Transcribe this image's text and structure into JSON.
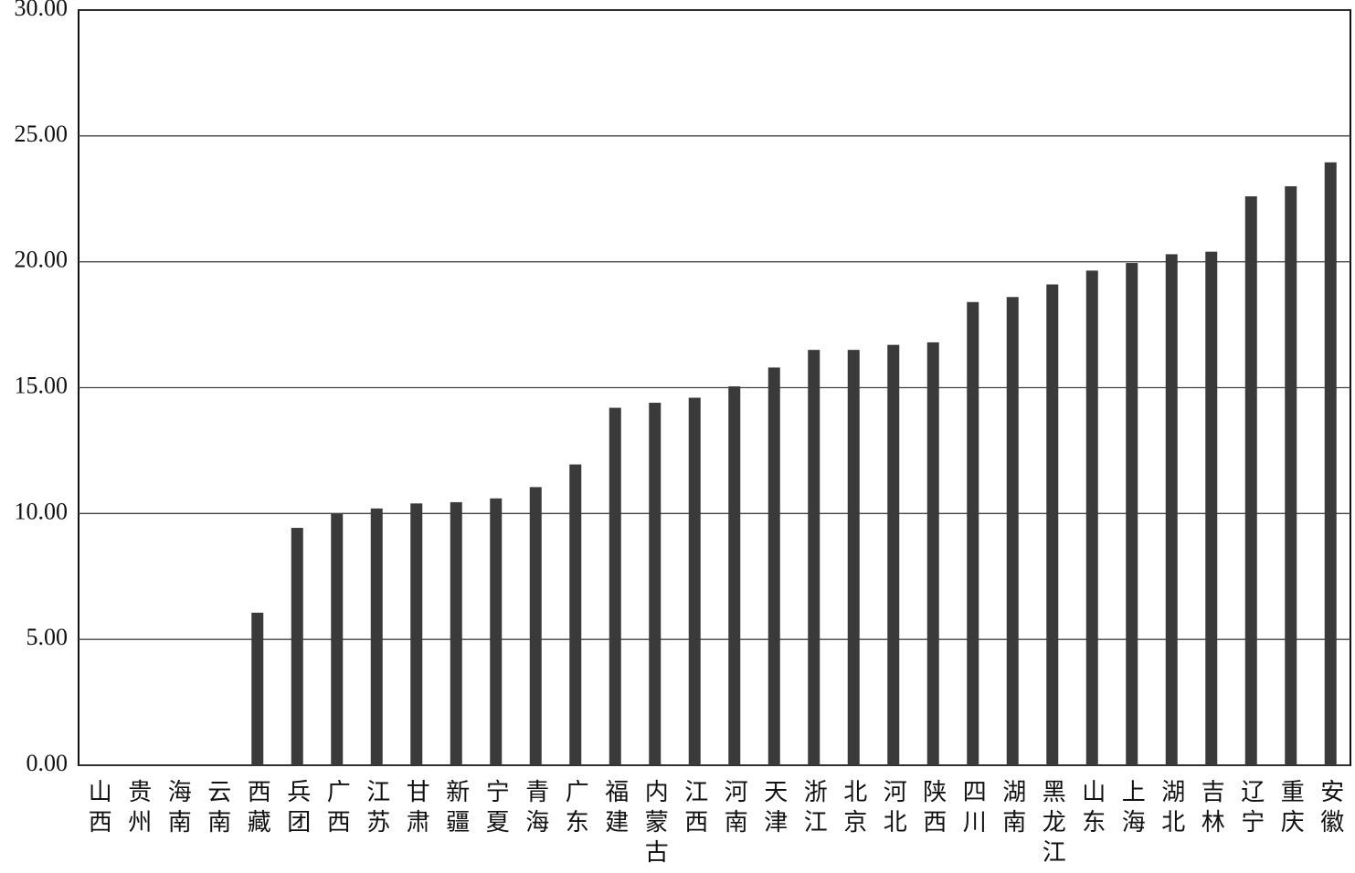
{
  "chart_data": {
    "type": "bar",
    "categories": [
      "山西",
      "贵州",
      "海南",
      "云南",
      "西藏",
      "兵团",
      "广西",
      "江苏",
      "甘肃",
      "新疆",
      "宁夏",
      "青海",
      "广东",
      "福建",
      "内蒙古",
      "江西",
      "河南",
      "天津",
      "浙江",
      "北京",
      "河北",
      "陕西",
      "四川",
      "湖南",
      "黑龙江",
      "山东",
      "上海",
      "湖北",
      "吉林",
      "辽宁",
      "重庆",
      "安徽"
    ],
    "values": [
      0,
      0,
      0,
      0,
      6.06,
      9.43,
      10.0,
      10.2,
      10.4,
      10.45,
      10.6,
      11.05,
      11.95,
      14.2,
      14.4,
      14.6,
      15.05,
      15.8,
      16.5,
      16.5,
      16.7,
      16.8,
      18.4,
      18.6,
      19.1,
      19.65,
      19.95,
      20.3,
      20.4,
      22.6,
      23.0,
      23.95
    ],
    "color": "#3a3a3a",
    "ylim": [
      0,
      30
    ],
    "yticks": [
      {
        "value": 0,
        "label": "0.00"
      },
      {
        "value": 5,
        "label": "5.00"
      },
      {
        "value": 10,
        "label": "10.00"
      },
      {
        "value": 15,
        "label": "15.00"
      },
      {
        "value": 20,
        "label": "20.00"
      },
      {
        "value": 25,
        "label": "25.00"
      },
      {
        "value": 30,
        "label": "30.00"
      }
    ],
    "grid": true
  }
}
